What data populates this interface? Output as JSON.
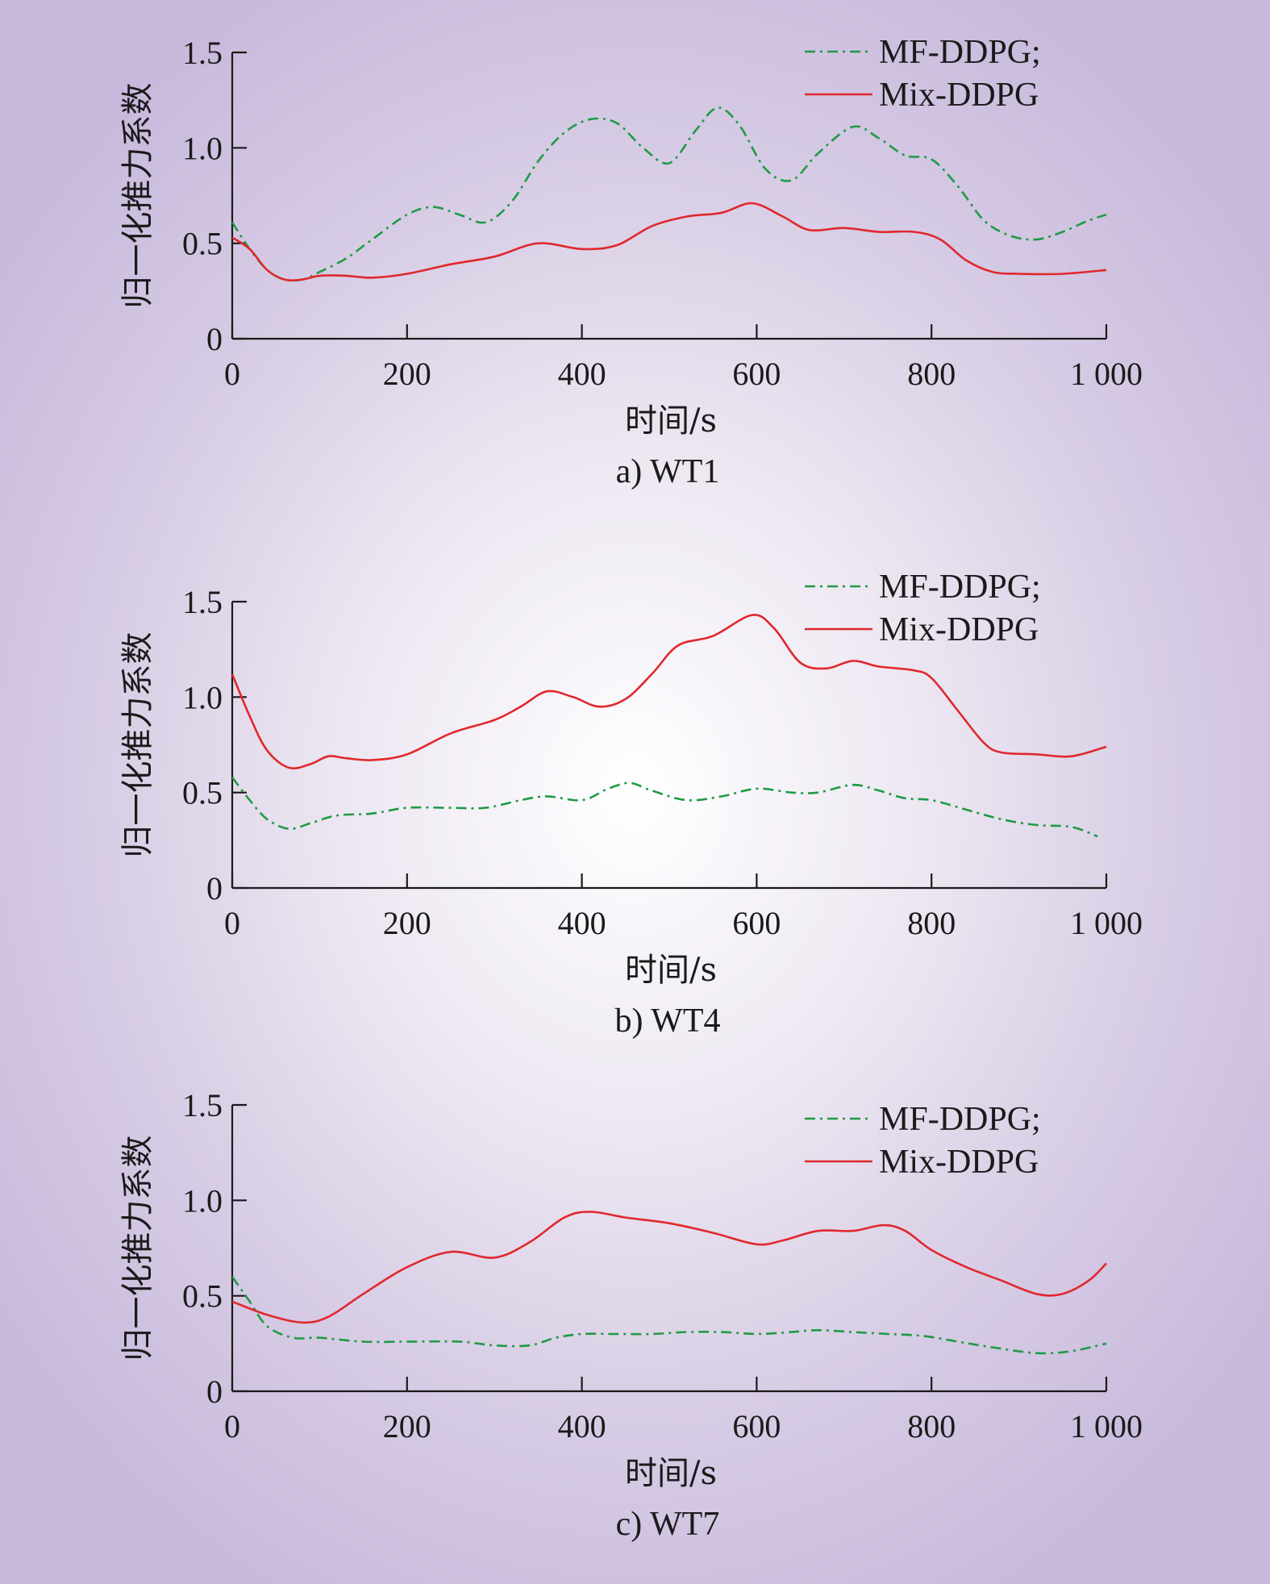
{
  "chart_data": [
    {
      "type": "line",
      "caption": "a) WT1",
      "xlabel": "时间/s",
      "ylabel": "归一化推力系数",
      "xlim": [
        0,
        1000
      ],
      "ylim": [
        0,
        1.5
      ],
      "x_ticks": [
        "0",
        "200",
        "400",
        "600",
        "800",
        "1 000"
      ],
      "y_ticks": [
        "0",
        "0.5",
        "1.0",
        "1.5"
      ],
      "legend_position": "top-right",
      "series": [
        {
          "name": "MF-DDPG;",
          "color": "#1f9a46",
          "style": "dash-dot",
          "x": [
            0,
            20,
            40,
            60,
            80,
            100,
            130,
            160,
            200,
            230,
            260,
            290,
            320,
            350,
            380,
            410,
            440,
            470,
            500,
            530,
            555,
            580,
            610,
            640,
            670,
            710,
            740,
            770,
            800,
            830,
            860,
            890,
            920,
            950,
            980,
            1000
          ],
          "y": [
            0.61,
            0.47,
            0.36,
            0.31,
            0.31,
            0.35,
            0.42,
            0.52,
            0.65,
            0.69,
            0.65,
            0.61,
            0.72,
            0.93,
            1.08,
            1.15,
            1.13,
            1.0,
            0.92,
            1.09,
            1.21,
            1.12,
            0.89,
            0.83,
            0.97,
            1.11,
            1.05,
            0.96,
            0.94,
            0.8,
            0.62,
            0.54,
            0.52,
            0.56,
            0.62,
            0.65
          ]
        },
        {
          "name": "Mix-DDPG",
          "color": "#e0282d",
          "style": "solid",
          "x": [
            0,
            20,
            40,
            60,
            80,
            100,
            130,
            160,
            200,
            250,
            300,
            350,
            400,
            440,
            480,
            520,
            560,
            595,
            630,
            660,
            700,
            740,
            780,
            810,
            840,
            870,
            900,
            950,
            1000
          ],
          "y": [
            0.53,
            0.47,
            0.36,
            0.31,
            0.31,
            0.33,
            0.33,
            0.32,
            0.34,
            0.39,
            0.43,
            0.5,
            0.47,
            0.49,
            0.59,
            0.64,
            0.66,
            0.71,
            0.64,
            0.57,
            0.58,
            0.56,
            0.56,
            0.52,
            0.41,
            0.35,
            0.34,
            0.34,
            0.36
          ]
        }
      ]
    },
    {
      "type": "line",
      "caption": "b) WT4",
      "xlabel": "时间/s",
      "ylabel": "归一化推力系数",
      "xlim": [
        0,
        1000
      ],
      "ylim": [
        0,
        1.5
      ],
      "x_ticks": [
        "0",
        "200",
        "400",
        "600",
        "800",
        "1 000"
      ],
      "y_ticks": [
        "0",
        "0.5",
        "1.0",
        "1.5"
      ],
      "legend_position": "top-right",
      "series": [
        {
          "name": "MF-DDPG;",
          "color": "#1f9a46",
          "style": "dash-dot",
          "x": [
            0,
            20,
            40,
            65,
            90,
            120,
            160,
            200,
            250,
            290,
            330,
            360,
            400,
            430,
            455,
            480,
            520,
            560,
            600,
            640,
            670,
            710,
            740,
            770,
            800,
            840,
            880,
            920,
            960,
            990
          ],
          "y": [
            0.58,
            0.46,
            0.36,
            0.31,
            0.34,
            0.38,
            0.39,
            0.42,
            0.42,
            0.42,
            0.46,
            0.48,
            0.46,
            0.52,
            0.55,
            0.51,
            0.46,
            0.48,
            0.52,
            0.5,
            0.5,
            0.54,
            0.51,
            0.47,
            0.46,
            0.41,
            0.36,
            0.33,
            0.32,
            0.27
          ]
        },
        {
          "name": "Mix-DDPG",
          "color": "#e0282d",
          "style": "solid",
          "x": [
            0,
            20,
            40,
            65,
            90,
            110,
            130,
            160,
            200,
            250,
            300,
            330,
            360,
            390,
            420,
            450,
            480,
            510,
            550,
            595,
            620,
            650,
            680,
            710,
            740,
            780,
            800,
            830,
            860,
            880,
            920,
            960,
            1000
          ],
          "y": [
            1.12,
            0.9,
            0.72,
            0.63,
            0.65,
            0.69,
            0.68,
            0.67,
            0.7,
            0.81,
            0.88,
            0.95,
            1.03,
            1.0,
            0.95,
            0.99,
            1.12,
            1.27,
            1.32,
            1.43,
            1.36,
            1.18,
            1.15,
            1.19,
            1.16,
            1.14,
            1.1,
            0.93,
            0.76,
            0.71,
            0.7,
            0.69,
            0.74
          ]
        }
      ]
    },
    {
      "type": "line",
      "caption": "c) WT7",
      "xlabel": "时间/s",
      "ylabel": "归一化推力系数",
      "xlim": [
        0,
        1000
      ],
      "ylim": [
        0,
        1.5
      ],
      "x_ticks": [
        "0",
        "200",
        "400",
        "600",
        "800",
        "1 000"
      ],
      "y_ticks": [
        "0",
        "0.5",
        "1.0",
        "1.5"
      ],
      "legend_position": "top-right",
      "series": [
        {
          "name": "MF-DDPG;",
          "color": "#1f9a46",
          "style": "dash-dot",
          "x": [
            0,
            20,
            40,
            70,
            100,
            150,
            200,
            260,
            300,
            340,
            370,
            400,
            440,
            480,
            520,
            560,
            600,
            640,
            670,
            710,
            750,
            790,
            830,
            870,
            920,
            960,
            1000
          ],
          "y": [
            0.6,
            0.47,
            0.34,
            0.28,
            0.28,
            0.26,
            0.26,
            0.26,
            0.24,
            0.24,
            0.28,
            0.3,
            0.3,
            0.3,
            0.31,
            0.31,
            0.3,
            0.31,
            0.32,
            0.31,
            0.3,
            0.29,
            0.26,
            0.23,
            0.2,
            0.21,
            0.25
          ]
        },
        {
          "name": "Mix-DDPG",
          "color": "#e0282d",
          "style": "solid",
          "x": [
            0,
            40,
            80,
            110,
            150,
            200,
            250,
            300,
            340,
            380,
            410,
            450,
            500,
            550,
            600,
            630,
            670,
            710,
            745,
            770,
            800,
            840,
            880,
            920,
            950,
            980,
            1000
          ],
          "y": [
            0.47,
            0.4,
            0.36,
            0.39,
            0.51,
            0.65,
            0.73,
            0.7,
            0.78,
            0.91,
            0.94,
            0.91,
            0.88,
            0.83,
            0.77,
            0.79,
            0.84,
            0.84,
            0.87,
            0.84,
            0.74,
            0.65,
            0.58,
            0.51,
            0.51,
            0.58,
            0.67
          ]
        }
      ]
    }
  ]
}
